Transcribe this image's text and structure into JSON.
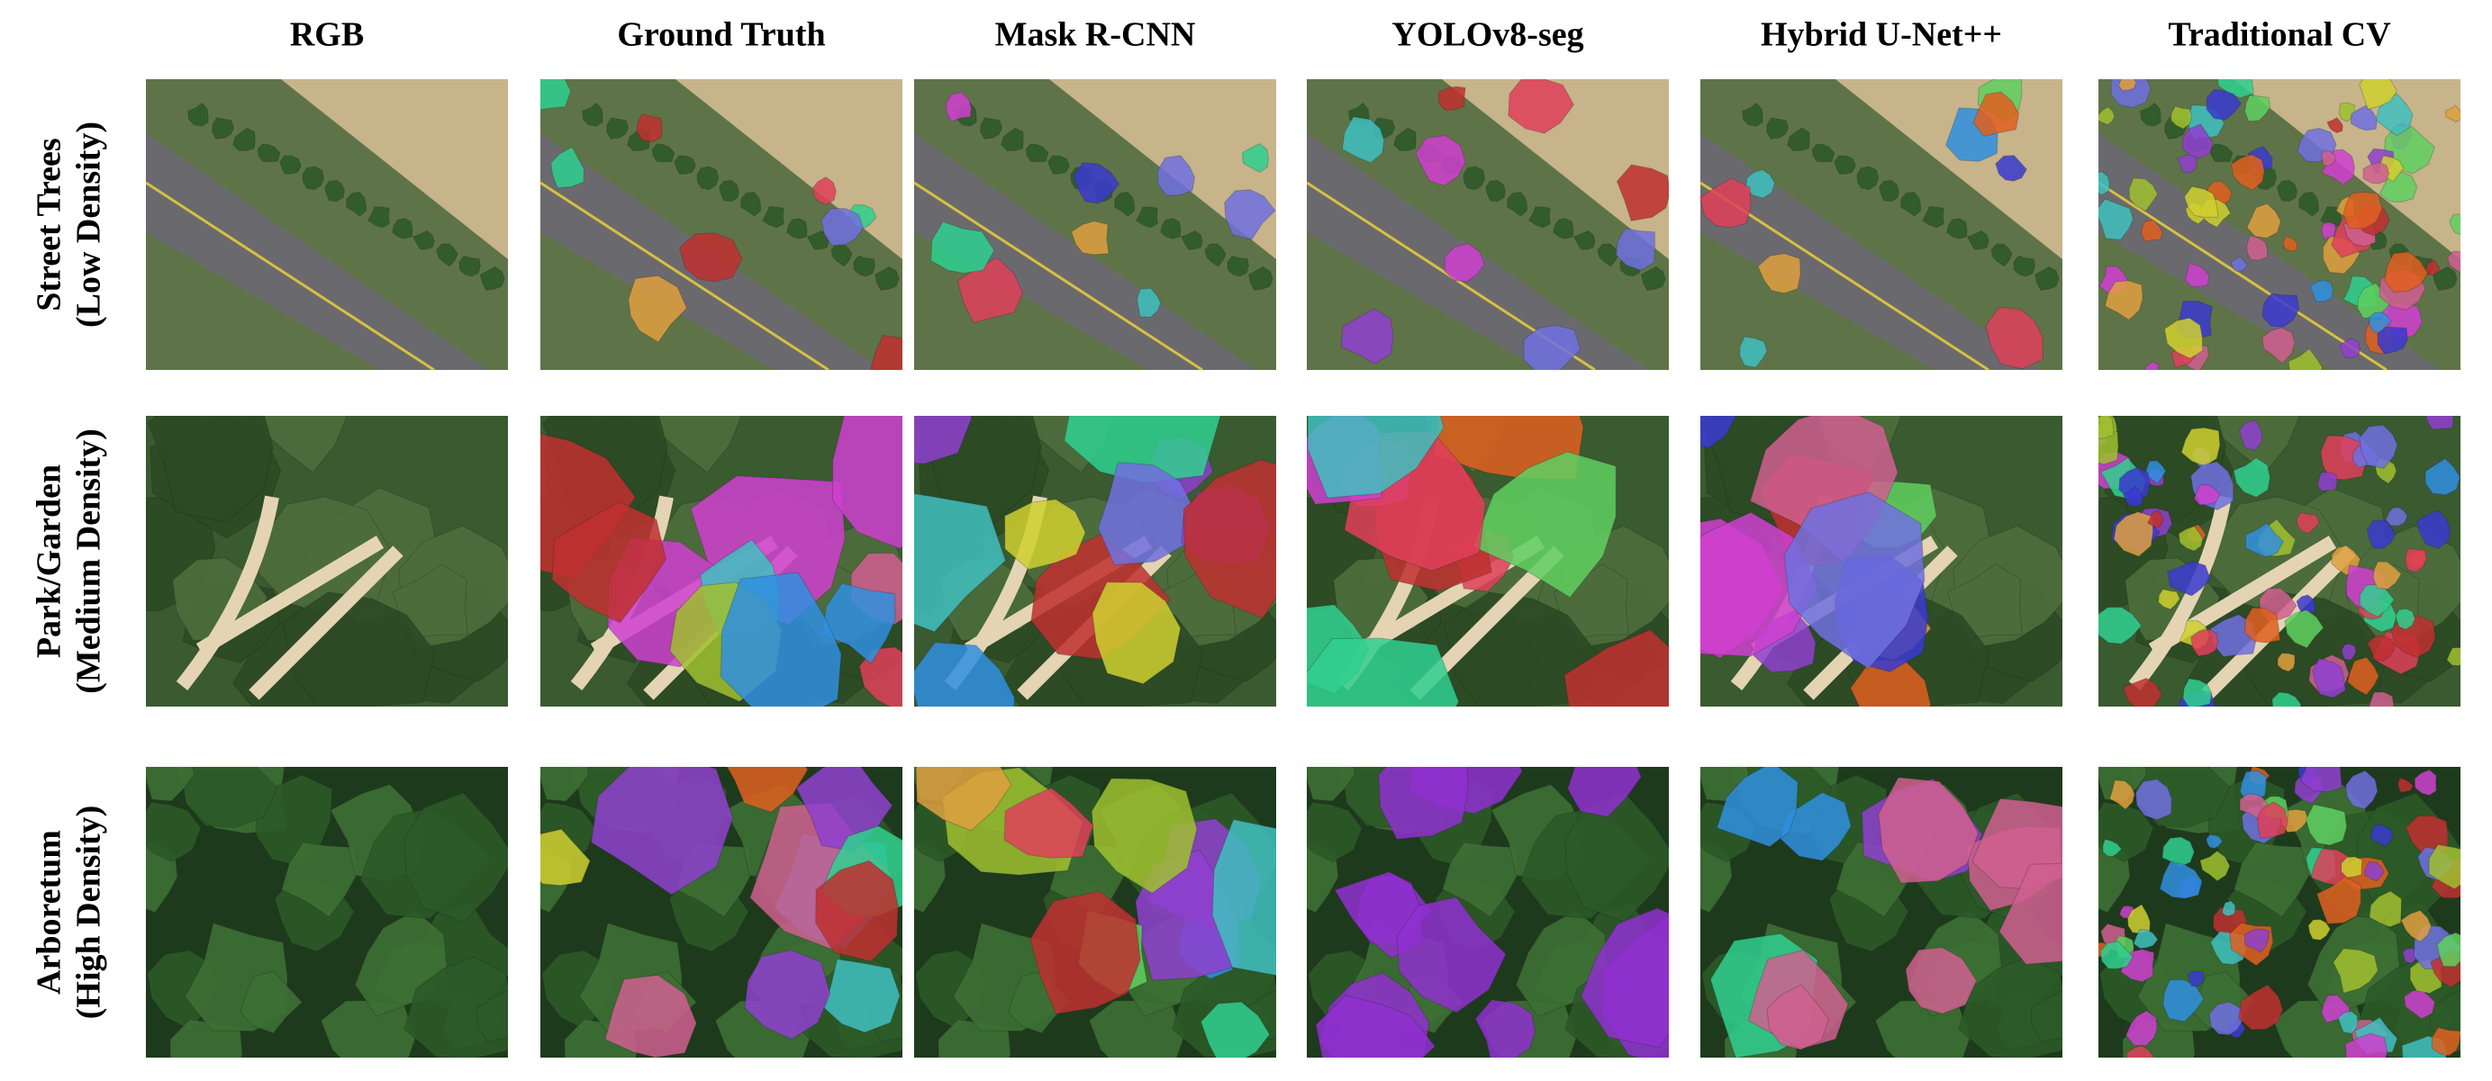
{
  "columns": [
    "RGB",
    "Ground Truth",
    "Mask R-CNN",
    "YOLOv8-seg",
    "Hybrid U-Net++",
    "Traditional CV"
  ],
  "rows": [
    {
      "line1": "Street Trees",
      "line2": "(Low Density)"
    },
    {
      "line1": "Park/Garden",
      "line2": "(Medium Density)"
    },
    {
      "line1": "Arboretum",
      "line2": "(High Density)"
    }
  ]
}
